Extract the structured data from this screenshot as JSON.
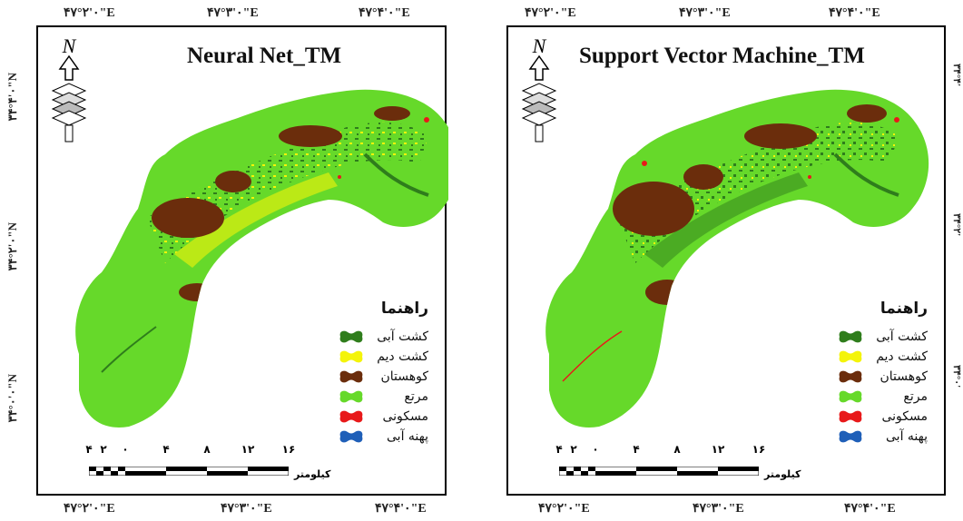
{
  "colors": {
    "irrigated": "#2f7d1c",
    "dryland": "#f4f40a",
    "mountain": "#6b2d0c",
    "rangeland": "#66d92a",
    "urban": "#e8191a",
    "water": "#1f5fb8"
  },
  "coordinates": {
    "top": [
      "۴۷°۲'۰\"E",
      "۴۷°۳'۰\"E",
      "۴۷°۴'۰\"E"
    ],
    "bottom": [
      "۴۷°۲'۰\"E",
      "۴۷°۳'۰\"E",
      "۴۷°۴'۰\"E"
    ],
    "left": [
      "۳۴°۴'۰\"N",
      "۳۴°۲'۰\"N",
      "۳۴°۰'۰\"N"
    ]
  },
  "panels": [
    {
      "title": "Neural Net_TM",
      "legend": {
        "title": "راهنما",
        "items": [
          {
            "label": "کشت آبی",
            "color_key": "irrigated"
          },
          {
            "label": "کشت دیم",
            "color_key": "dryland"
          },
          {
            "label": "کوهستان",
            "color_key": "mountain"
          },
          {
            "label": "مرتع",
            "color_key": "rangeland"
          },
          {
            "label": "مسکونی",
            "color_key": "urban"
          },
          {
            "label": "پهنه آبی",
            "color_key": "water"
          }
        ]
      },
      "scale": {
        "numbers": [
          "۴",
          "۲",
          "۰",
          "۴",
          "۸",
          "۱۲",
          "۱۶"
        ],
        "unit": "کیلومتر"
      },
      "north_label": "N"
    },
    {
      "title": "Support Vector Machine_TM",
      "legend": {
        "title": "راهنما",
        "items": [
          {
            "label": "کشت آبی",
            "color_key": "irrigated"
          },
          {
            "label": "کشت دیم",
            "color_key": "dryland"
          },
          {
            "label": "کوهستان",
            "color_key": "mountain"
          },
          {
            "label": "مرتع",
            "color_key": "rangeland"
          },
          {
            "label": "مسکونی",
            "color_key": "urban"
          },
          {
            "label": "پهنه آبی",
            "color_key": "water"
          }
        ]
      },
      "scale": {
        "numbers": [
          "۴",
          "۲",
          "۰",
          "۴",
          "۸",
          "۱۲",
          "۱۶"
        ],
        "unit": "کیلومتر"
      },
      "north_label": "N"
    }
  ],
  "right_edge_labels": [
    "۳۴°۴'",
    "۳۴°۲'",
    "۳۴°۰'"
  ]
}
